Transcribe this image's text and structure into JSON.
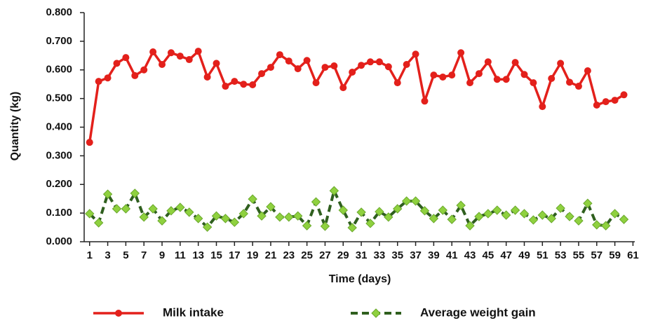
{
  "chart_data": {
    "type": "line",
    "x_label": "Time (days)",
    "y_label": "Quantity (kg)",
    "x": [
      1,
      2,
      3,
      4,
      5,
      6,
      7,
      8,
      9,
      10,
      11,
      12,
      13,
      14,
      15,
      16,
      17,
      18,
      19,
      20,
      21,
      22,
      23,
      24,
      25,
      26,
      27,
      28,
      29,
      30,
      31,
      32,
      33,
      34,
      35,
      36,
      37,
      38,
      39,
      40,
      41,
      42,
      43,
      44,
      45,
      46,
      47,
      48,
      49,
      50,
      51,
      52,
      53,
      54,
      55,
      56,
      57,
      58,
      59,
      60
    ],
    "series": [
      {
        "name": "Milk intake",
        "color": "#e3201b",
        "values": [
          0.347,
          0.56,
          0.572,
          0.623,
          0.643,
          0.58,
          0.6,
          0.663,
          0.619,
          0.66,
          0.648,
          0.636,
          0.665,
          0.575,
          0.623,
          0.543,
          0.56,
          0.55,
          0.548,
          0.587,
          0.609,
          0.653,
          0.631,
          0.604,
          0.633,
          0.555,
          0.609,
          0.614,
          0.538,
          0.592,
          0.616,
          0.628,
          0.628,
          0.611,
          0.555,
          0.619,
          0.655,
          0.491,
          0.582,
          0.575,
          0.582,
          0.66,
          0.555,
          0.587,
          0.628,
          0.567,
          0.567,
          0.626,
          0.584,
          0.555,
          0.472,
          0.57,
          0.623,
          0.557,
          0.543,
          0.597,
          0.477,
          0.489,
          0.494,
          0.513
        ]
      },
      {
        "name": "Average weight gain",
        "color": "#2f5f1e",
        "values": [
          0.098,
          0.066,
          0.166,
          0.115,
          0.115,
          0.169,
          0.086,
          0.115,
          0.073,
          0.108,
          0.12,
          0.103,
          0.081,
          0.051,
          0.09,
          0.081,
          0.068,
          0.098,
          0.149,
          0.09,
          0.122,
          0.086,
          0.086,
          0.09,
          0.056,
          0.139,
          0.054,
          0.178,
          0.11,
          0.049,
          0.103,
          0.064,
          0.105,
          0.086,
          0.115,
          0.142,
          0.142,
          0.108,
          0.081,
          0.11,
          0.078,
          0.127,
          0.056,
          0.088,
          0.098,
          0.11,
          0.093,
          0.11,
          0.098,
          0.076,
          0.093,
          0.081,
          0.117,
          0.088,
          0.073,
          0.134,
          0.059,
          0.056,
          0.098,
          0.078
        ]
      }
    ],
    "xlim": [
      0.4,
      61.2
    ],
    "xticks": [
      1,
      3,
      5,
      7,
      9,
      11,
      13,
      15,
      17,
      19,
      21,
      23,
      25,
      27,
      29,
      31,
      33,
      35,
      37,
      39,
      41,
      43,
      45,
      47,
      49,
      51,
      53,
      55,
      57,
      59,
      61
    ],
    "ylim": [
      0,
      0.8
    ],
    "yticks": [
      {
        "value": 0,
        "label": "0.000"
      },
      {
        "value": 0.1,
        "label": "0.100"
      },
      {
        "value": 0.2,
        "label": "0.200"
      },
      {
        "value": 0.3,
        "label": "0.300"
      },
      {
        "value": 0.4,
        "label": "0.400"
      },
      {
        "value": 0.5,
        "label": "0.500"
      },
      {
        "value": 0.6,
        "label": "0.600"
      },
      {
        "value": 0.7,
        "label": "0.700"
      },
      {
        "value": 0.8,
        "label": "0.800"
      }
    ],
    "grid": false,
    "legend": "bottom"
  }
}
